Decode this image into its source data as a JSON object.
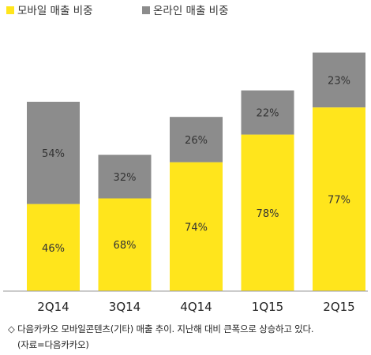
{
  "chart_data": {
    "type": "bar",
    "stacked": true,
    "categories": [
      "2Q14",
      "3Q14",
      "4Q14",
      "1Q15",
      "2Q15"
    ],
    "series": [
      {
        "name": "모바일 매출 비중",
        "color": "#FFE51C",
        "values": [
          46,
          68,
          74,
          78,
          77
        ],
        "labels": [
          "46%",
          "68%",
          "74%",
          "78%",
          "77%"
        ]
      },
      {
        "name": "온라인 매출 비중",
        "color": "#8C8C8C",
        "values": [
          54,
          32,
          26,
          22,
          23
        ],
        "labels": [
          "54%",
          "32%",
          "26%",
          "22%",
          "23%"
        ]
      }
    ],
    "total_height_relative": [
      1.0,
      0.72,
      0.92,
      1.06,
      1.26
    ],
    "legend_position": "top-left",
    "grid": false
  },
  "caption": {
    "line1": "◇ 다음카카오 모바일콘텐츠(기타) 매출 추이. 지난해 대비 큰폭으로 상승하고 있다.",
    "line2": "(자료=다음카카오)"
  }
}
